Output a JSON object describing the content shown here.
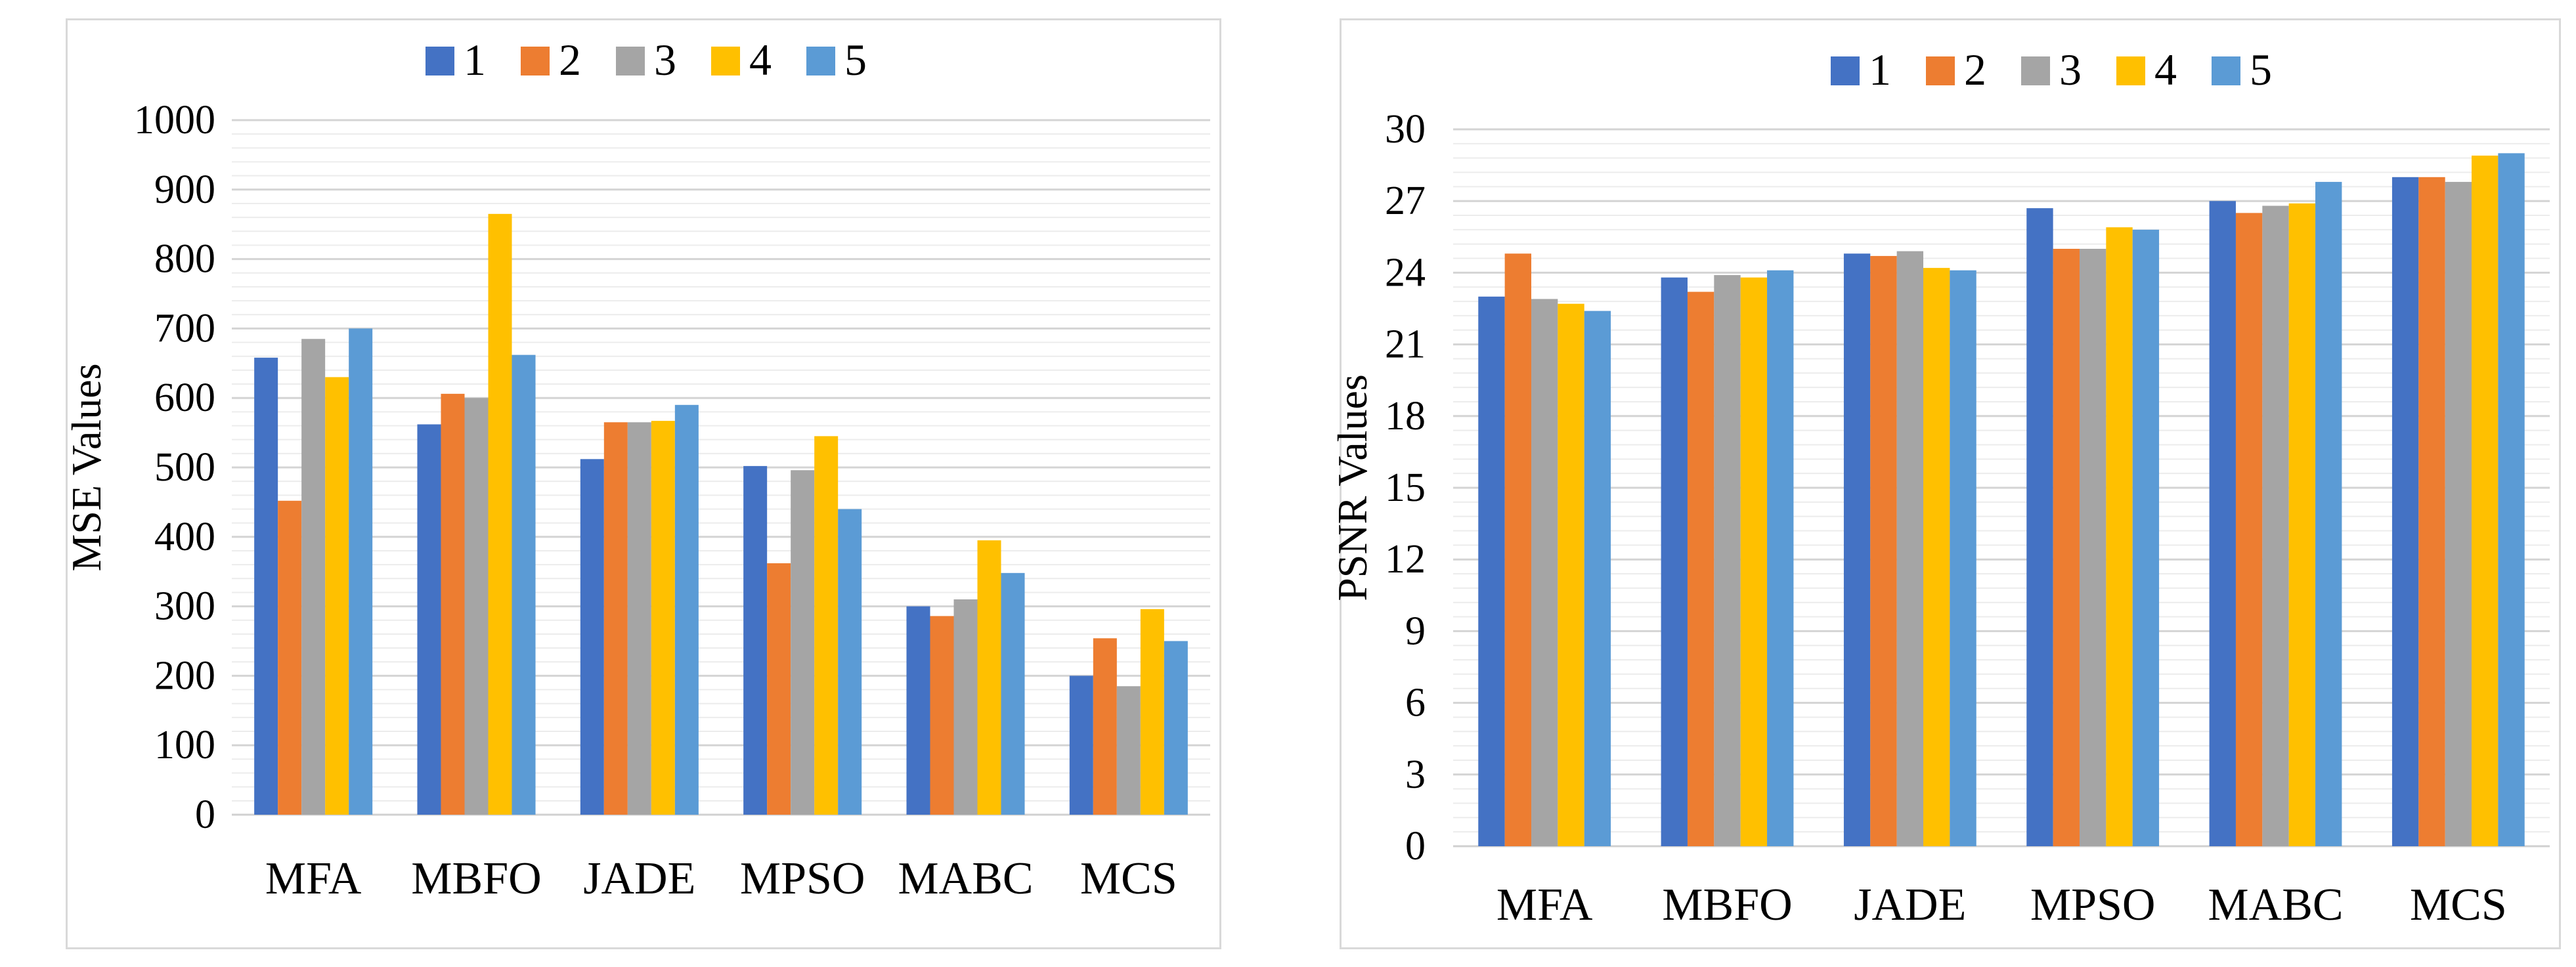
{
  "colors": [
    "#4472c4",
    "#ed7d31",
    "#a5a5a5",
    "#ffc000",
    "#5b9bd5"
  ],
  "chart_data": [
    {
      "type": "bar",
      "title": "",
      "xlabel": "",
      "ylabel": "MSE Values",
      "ylim": [
        0,
        1000
      ],
      "ytick_step": 100,
      "minor_step": 20,
      "categories": [
        "MFA",
        "MBFO",
        "JADE",
        "MPSO",
        "MABC",
        "MCS"
      ],
      "series": [
        {
          "name": "1",
          "values": [
            658,
            562,
            512,
            502,
            300,
            200
          ]
        },
        {
          "name": "2",
          "values": [
            452,
            606,
            565,
            362,
            286,
            254
          ]
        },
        {
          "name": "3",
          "values": [
            685,
            600,
            565,
            496,
            310,
            185
          ]
        },
        {
          "name": "4",
          "values": [
            630,
            865,
            567,
            545,
            395,
            296
          ]
        },
        {
          "name": "5",
          "values": [
            700,
            662,
            590,
            440,
            348,
            250
          ]
        }
      ],
      "legend": "top"
    },
    {
      "type": "bar",
      "title": "",
      "xlabel": "",
      "ylabel": "PSNR Values",
      "ylim": [
        0,
        30
      ],
      "ytick_step": 3,
      "minor_step": 0.6,
      "categories": [
        "MFA",
        "MBFO",
        "JADE",
        "MPSO",
        "MABC",
        "MCS"
      ],
      "series": [
        {
          "name": "1",
          "values": [
            23.0,
            23.8,
            24.8,
            26.7,
            27.0,
            28.0
          ]
        },
        {
          "name": "2",
          "values": [
            24.8,
            23.2,
            24.7,
            25.0,
            26.5,
            28.0
          ]
        },
        {
          "name": "3",
          "values": [
            22.9,
            23.9,
            24.9,
            25.0,
            26.8,
            27.8
          ]
        },
        {
          "name": "4",
          "values": [
            22.7,
            23.8,
            24.2,
            25.9,
            26.9,
            28.9
          ]
        },
        {
          "name": "5",
          "values": [
            22.4,
            24.1,
            24.1,
            25.8,
            27.8,
            29.0
          ]
        }
      ],
      "legend": "top"
    }
  ]
}
